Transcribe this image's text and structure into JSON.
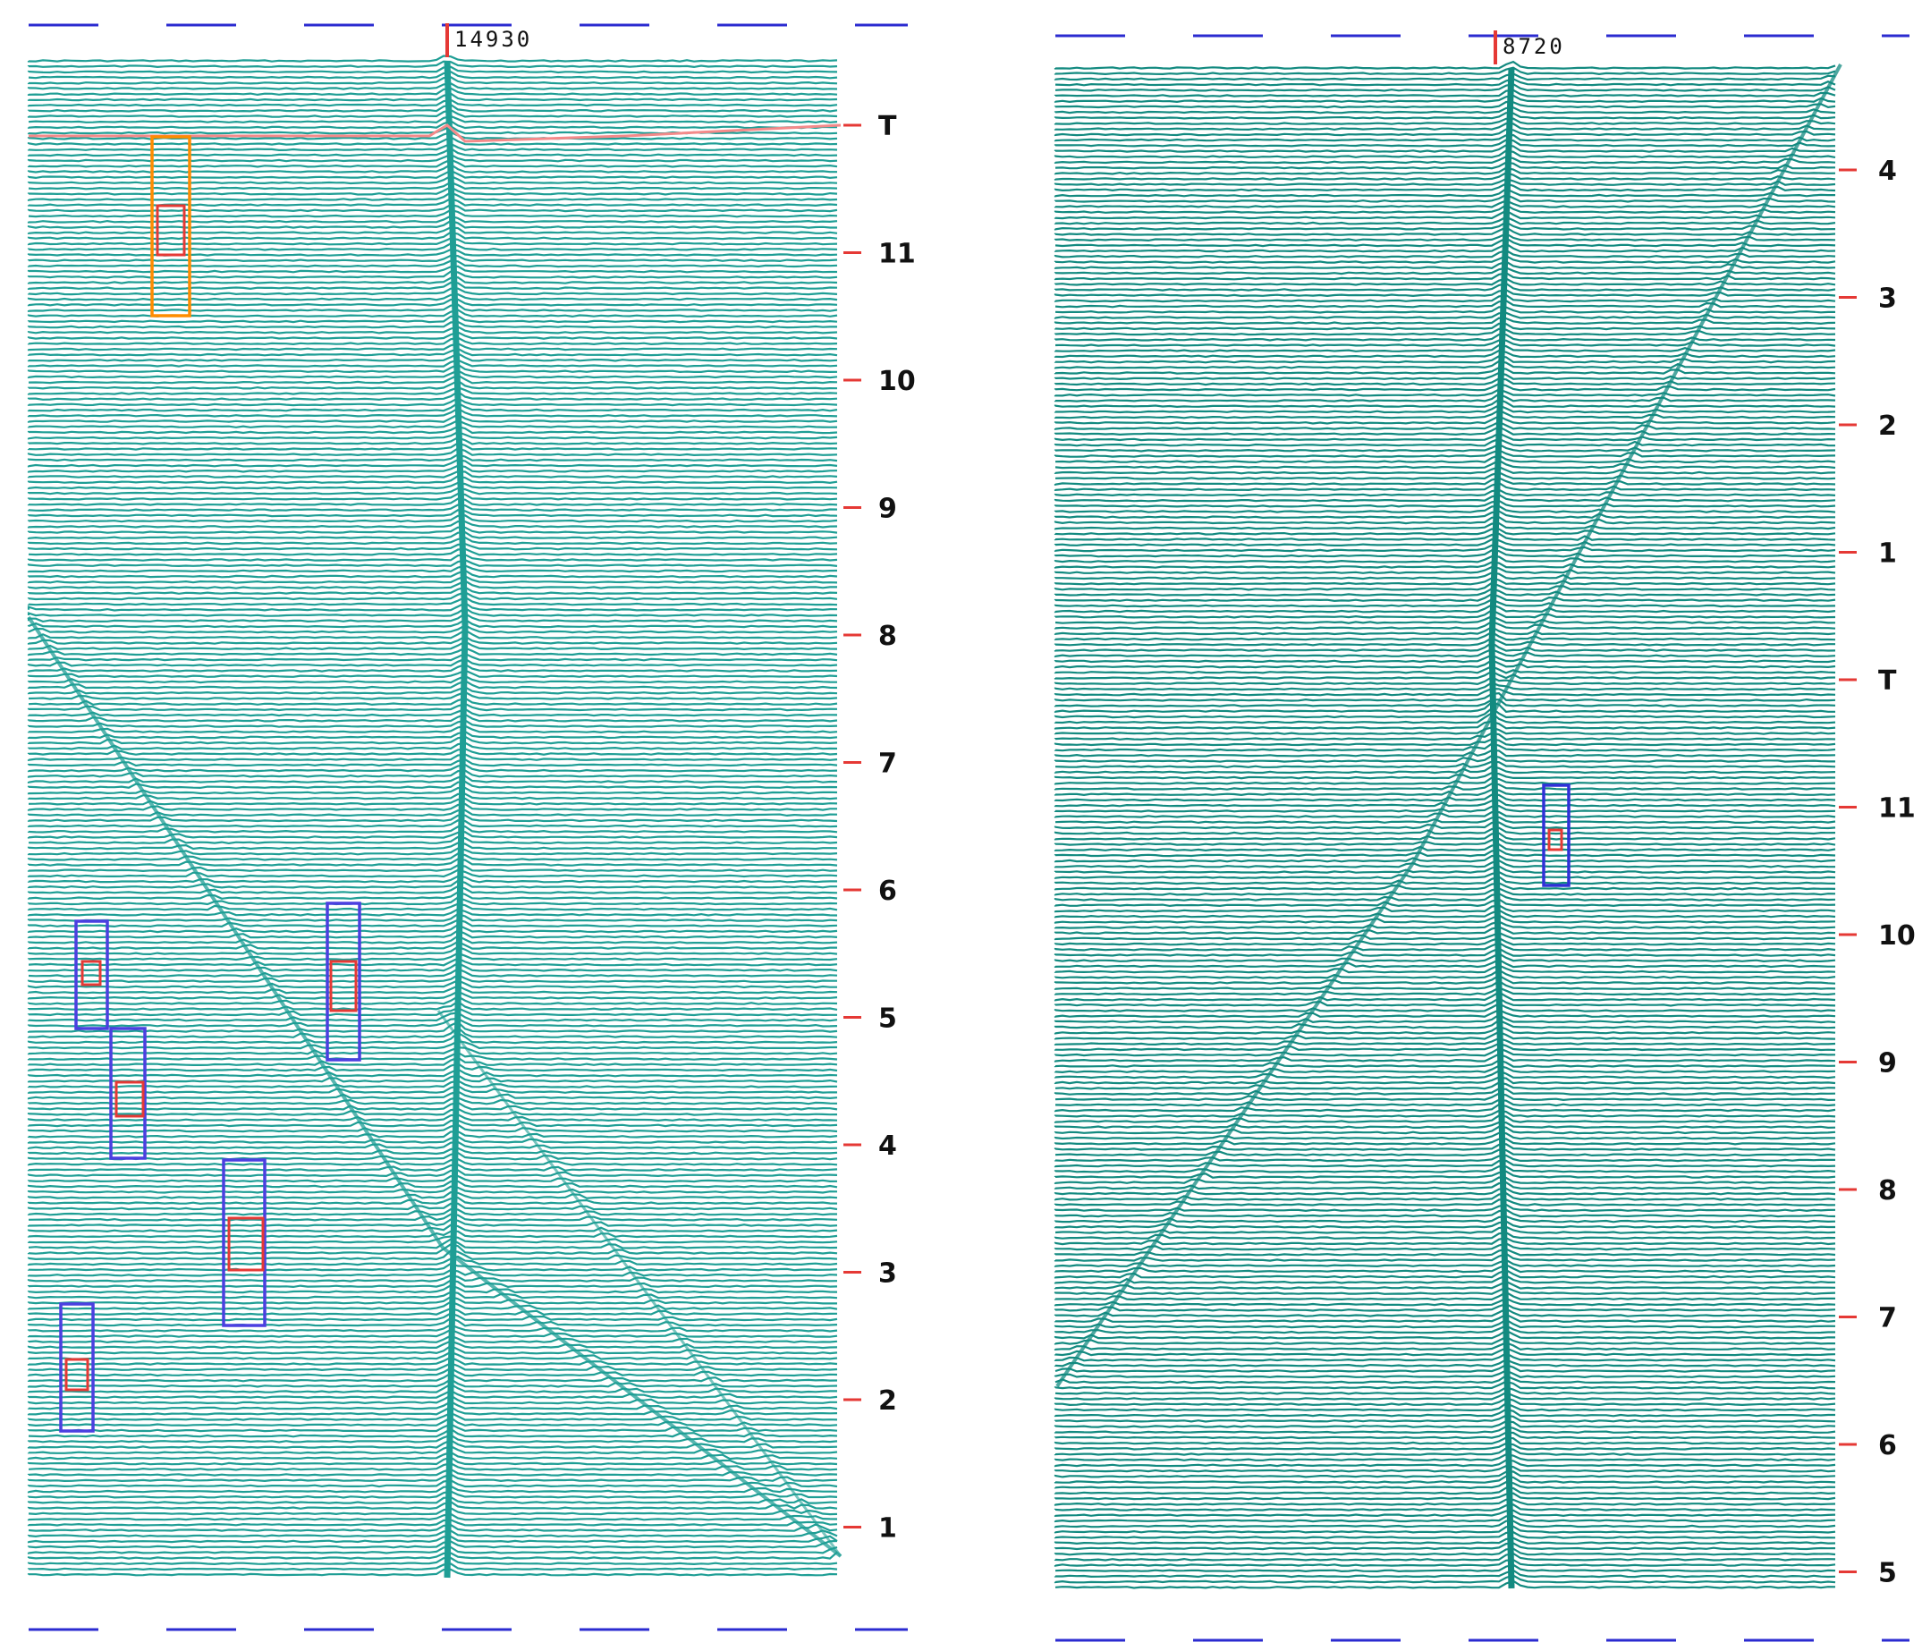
{
  "chart_data": [
    {
      "type": "waterfall-trace",
      "position": "left",
      "trace_color": "#1f9e95",
      "marker_label": "14930",
      "marker_color": "#e53935",
      "y_tick_labels": [
        "T",
        "11",
        "10",
        "9",
        "8",
        "7",
        "6",
        "5",
        "4",
        "3",
        "2",
        "1"
      ],
      "threshold_line": {
        "row_label": "T",
        "color": "#f48a8a"
      },
      "box_pairs": [
        {
          "outer_color": "#ff8c00",
          "inner_color": "#e53935"
        },
        {
          "outer_color": "#4b3fe0",
          "inner_color": "#e53935"
        },
        {
          "outer_color": "#4b3fe0",
          "inner_color": "#e53935"
        },
        {
          "outer_color": "#4b3fe0",
          "inner_color": "#e53935"
        },
        {
          "outer_color": "#4b3fe0",
          "inner_color": "#e53935"
        },
        {
          "outer_color": "#4b3fe0",
          "inner_color": "#e53935"
        }
      ],
      "dashed_border_color": "#2b2bd0"
    },
    {
      "type": "waterfall-trace",
      "position": "right",
      "trace_color": "#138a80",
      "marker_label": "8720",
      "marker_color": "#e53935",
      "y_tick_labels": [
        "4",
        "3",
        "2",
        "1",
        "T",
        "11",
        "10",
        "9",
        "8",
        "7",
        "6",
        "5"
      ],
      "box_pairs": [
        {
          "outer_color": "#3030d8",
          "inner_color": "#e53935"
        }
      ],
      "dashed_border_color": "#2b2bd0"
    }
  ]
}
